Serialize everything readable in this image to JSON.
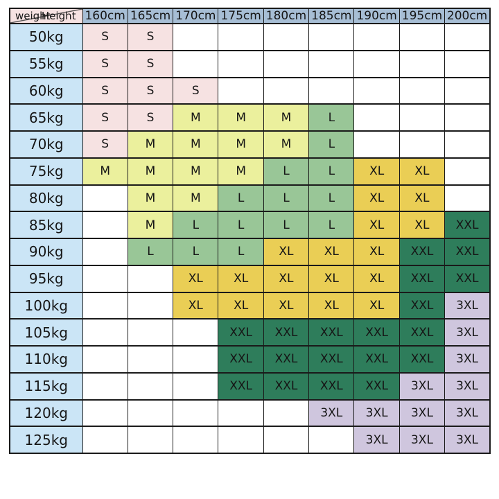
{
  "colors": {
    "grid_line": "#1a1a1a",
    "header_bg": "#a7bed5",
    "weight_bg": "#cbe5f6",
    "corner_bg": "#f6e2e2",
    "empty_bg": "#ffffff",
    "text": "#161616",
    "sizes": {
      "S": "#f6e2e2",
      "M": "#ebf09d",
      "L": "#99c697",
      "XL": "#eace55",
      "XXL": "#2e7d5b",
      "3XL": "#cfc6de"
    }
  },
  "chart_data": {
    "type": "table",
    "corner": {
      "top": "Height",
      "bottom": "weight"
    },
    "columns": [
      "160cm",
      "165cm",
      "170cm",
      "175cm",
      "180cm",
      "185cm",
      "190cm",
      "195cm",
      "200cm"
    ],
    "rows": [
      {
        "weight": "50kg",
        "cells": [
          "S",
          "S",
          "",
          "",
          "",
          "",
          "",
          "",
          ""
        ]
      },
      {
        "weight": "55kg",
        "cells": [
          "S",
          "S",
          "",
          "",
          "",
          "",
          "",
          "",
          ""
        ]
      },
      {
        "weight": "60kg",
        "cells": [
          "S",
          "S",
          "S",
          "",
          "",
          "",
          "",
          "",
          ""
        ]
      },
      {
        "weight": "65kg",
        "cells": [
          "S",
          "S",
          "M",
          "M",
          "M",
          "L",
          "",
          "",
          ""
        ]
      },
      {
        "weight": "70kg",
        "cells": [
          "S",
          "M",
          "M",
          "M",
          "M",
          "L",
          "",
          "",
          ""
        ]
      },
      {
        "weight": "75kg",
        "cells": [
          "M",
          "M",
          "M",
          "M",
          "L",
          "L",
          "XL",
          "XL",
          ""
        ]
      },
      {
        "weight": "80kg",
        "cells": [
          "",
          "M",
          "M",
          "L",
          "L",
          "L",
          "XL",
          "XL",
          ""
        ]
      },
      {
        "weight": "85kg",
        "cells": [
          "",
          "M",
          "L",
          "L",
          "L",
          "L",
          "XL",
          "XL",
          "XXL"
        ]
      },
      {
        "weight": "90kg",
        "cells": [
          "",
          "L",
          "L",
          "L",
          "XL",
          "XL",
          "XL",
          "XXL",
          "XXL"
        ]
      },
      {
        "weight": "95kg",
        "cells": [
          "",
          "",
          "XL",
          "XL",
          "XL",
          "XL",
          "XL",
          "XXL",
          "XXL"
        ]
      },
      {
        "weight": "100kg",
        "cells": [
          "",
          "",
          "XL",
          "XL",
          "XL",
          "XL",
          "XL",
          "XXL",
          "3XL"
        ]
      },
      {
        "weight": "105kg",
        "cells": [
          "",
          "",
          "",
          "XXL",
          "XXL",
          "XXL",
          "XXL",
          "XXL",
          "3XL"
        ]
      },
      {
        "weight": "110kg",
        "cells": [
          "",
          "",
          "",
          "XXL",
          "XXL",
          "XXL",
          "XXL",
          "XXL",
          "3XL"
        ]
      },
      {
        "weight": "115kg",
        "cells": [
          "",
          "",
          "",
          "XXL",
          "XXL",
          "XXL",
          "XXL",
          "3XL",
          "3XL"
        ]
      },
      {
        "weight": "120kg",
        "cells": [
          "",
          "",
          "",
          "",
          "",
          "3XL",
          "3XL",
          "3XL",
          "3XL"
        ]
      },
      {
        "weight": "125kg",
        "cells": [
          "",
          "",
          "",
          "",
          "",
          "",
          "3XL",
          "3XL",
          "3XL"
        ]
      }
    ]
  }
}
